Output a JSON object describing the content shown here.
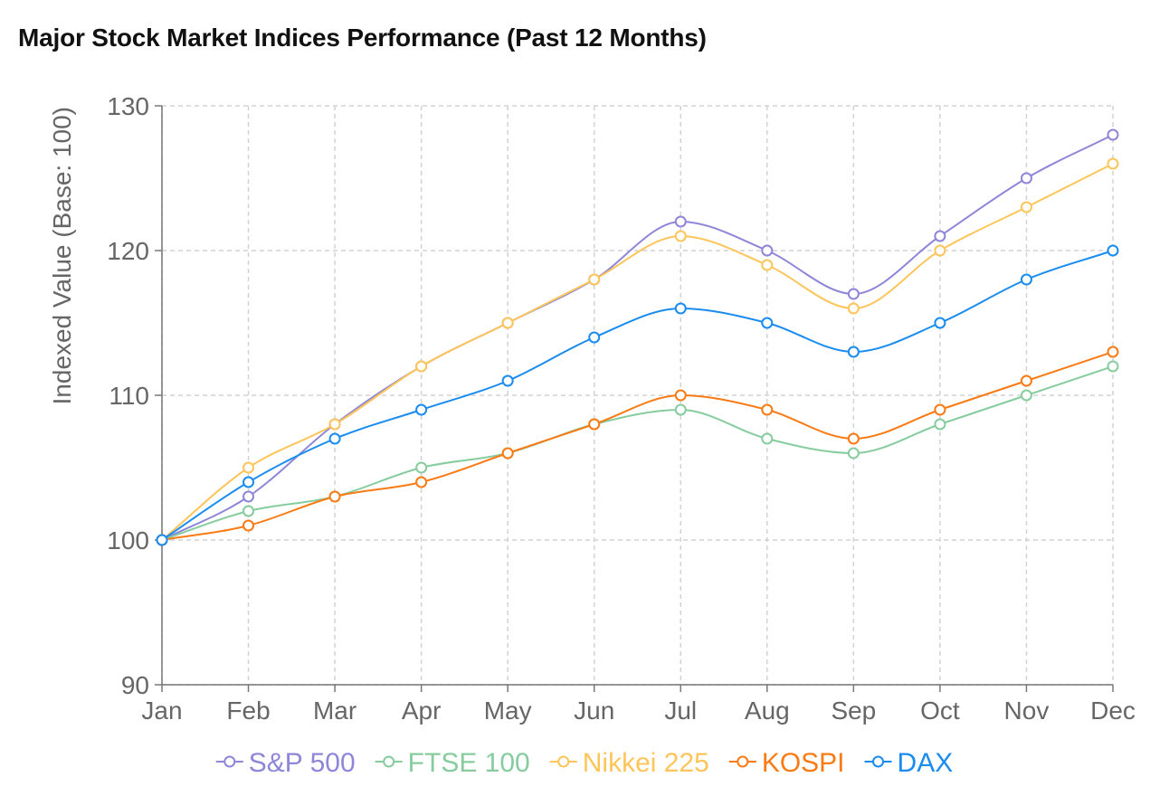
{
  "chart_data": {
    "type": "line",
    "title": "Major Stock Market Indices Performance (Past 12 Months)",
    "ylabel": "Indexed Value (Base: 100)",
    "xlabel": "",
    "categories": [
      "Jan",
      "Feb",
      "Mar",
      "Apr",
      "May",
      "Jun",
      "Jul",
      "Aug",
      "Sep",
      "Oct",
      "Nov",
      "Dec"
    ],
    "ylim": [
      90,
      130
    ],
    "yticks": [
      90,
      100,
      110,
      120,
      130
    ],
    "grid": true,
    "legend_position": "bottom",
    "series": [
      {
        "name": "S&P 500",
        "color": "#8e86d8",
        "values": [
          100,
          103,
          108,
          112,
          115,
          118,
          122,
          120,
          117,
          121,
          125,
          128
        ]
      },
      {
        "name": "FTSE 100",
        "color": "#86cc9e",
        "values": [
          100,
          102,
          103,
          105,
          106,
          108,
          109,
          107,
          106,
          108,
          110,
          112
        ]
      },
      {
        "name": "Nikkei 225",
        "color": "#fdc55a",
        "values": [
          100,
          105,
          108,
          112,
          115,
          118,
          121,
          119,
          116,
          120,
          123,
          126
        ]
      },
      {
        "name": "KOSPI",
        "color": "#fa7a14",
        "values": [
          100,
          101,
          103,
          104,
          106,
          108,
          110,
          109,
          107,
          109,
          111,
          113
        ]
      },
      {
        "name": "DAX",
        "color": "#1a8cf0",
        "values": [
          100,
          104,
          107,
          109,
          111,
          114,
          116,
          115,
          113,
          115,
          118,
          120
        ]
      }
    ]
  }
}
